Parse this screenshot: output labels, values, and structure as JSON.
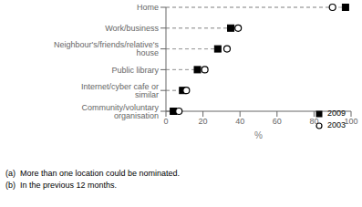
{
  "chart_data": {
    "type": "scatter",
    "orientation": "horizontal",
    "categories": [
      "Home",
      "Work/business",
      "Neighbour's/friends/relative's house",
      "Public library",
      "Internet/cyber cafe or similar",
      "Community/voluntary organisation"
    ],
    "series": [
      {
        "name": "2009",
        "color": "#000000",
        "marker": "square",
        "values": [
          97,
          35,
          28,
          17,
          9,
          4
        ]
      },
      {
        "name": "2003",
        "color": "#000000",
        "marker": "circle",
        "values": [
          90,
          39,
          33,
          21,
          11,
          7
        ]
      }
    ],
    "xlabel": "%",
    "xlim": [
      0,
      100
    ],
    "xticks": [
      0,
      20,
      40,
      60,
      80,
      100
    ],
    "grid": false,
    "legend": "lower right",
    "line_style": "dashed",
    "annotations": [
      "(a)  More than one location could be nominated.",
      "(b)  In the previous 12 months."
    ]
  }
}
